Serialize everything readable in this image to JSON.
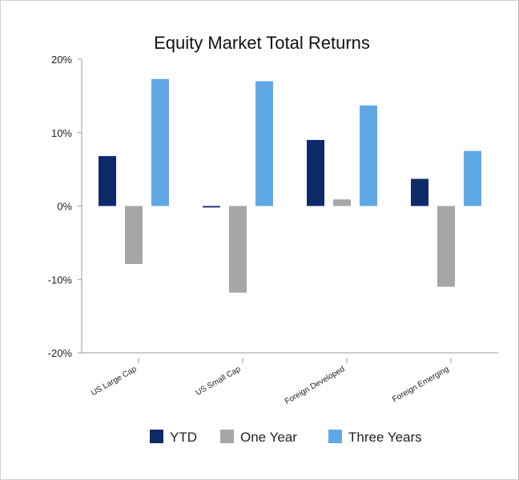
{
  "chart_data": {
    "type": "bar",
    "title": "Equity Market Total Returns",
    "categories": [
      "US Large Cap",
      "US Small Cap",
      "Foreign Developed",
      "Foreign Emerging"
    ],
    "series": [
      {
        "name": "YTD",
        "color": "#0f2a6b",
        "values": [
          6.8,
          -0.2,
          9.0,
          3.7
        ]
      },
      {
        "name": "One Year",
        "color": "#a6a6a6",
        "values": [
          -7.9,
          -11.8,
          0.9,
          -11.0
        ]
      },
      {
        "name": "Three Years",
        "color": "#5fa8e6",
        "values": [
          17.3,
          17.0,
          13.7,
          7.5
        ]
      }
    ],
    "ylim": [
      -20,
      20
    ],
    "yticks": [
      20,
      10,
      0,
      -10,
      -20
    ],
    "ytick_labels": [
      "20%",
      "10%",
      "0%",
      "-10%",
      "-20%"
    ],
    "grid": false,
    "legend": "bottom"
  }
}
